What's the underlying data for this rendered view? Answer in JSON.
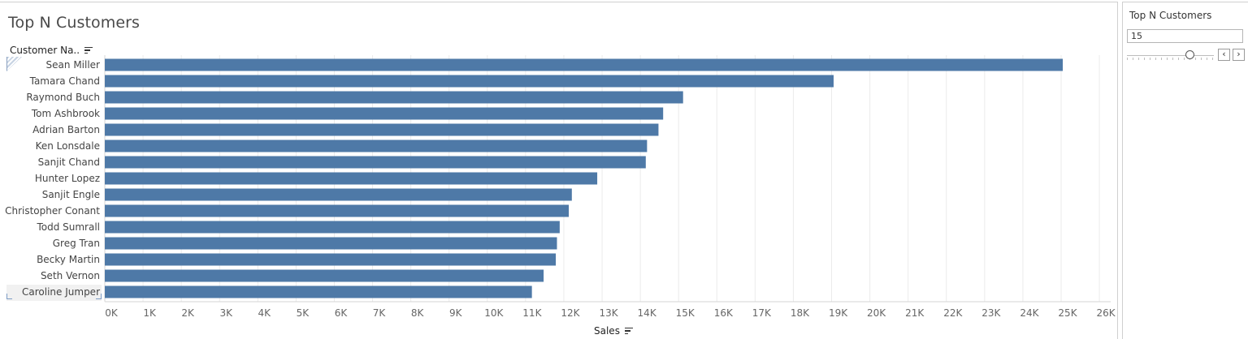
{
  "sheet": {
    "title": "Top N Customers",
    "row_header": "Customer Na..",
    "axis_title": "Sales"
  },
  "parameter": {
    "title": "Top N Customers",
    "value": "15",
    "slider_position": 0.72,
    "prev_label": "‹",
    "next_label": "›"
  },
  "colors": {
    "bar": "#4e79a7",
    "grid": "#ebebeb"
  },
  "chart_data": {
    "type": "bar",
    "orientation": "horizontal",
    "categories": [
      "Sean Miller",
      "Tamara Chand",
      "Raymond Buch",
      "Tom Ashbrook",
      "Adrian Barton",
      "Ken Lonsdale",
      "Sanjit Chand",
      "Hunter Lopez",
      "Sanjit Engle",
      "Christopher Conant",
      "Todd Sumrall",
      "Greg Tran",
      "Becky Martin",
      "Seth Vernon",
      "Caroline Jumper"
    ],
    "values": [
      25043,
      19052,
      15117,
      14596,
      14474,
      14175,
      14142,
      12873,
      12209,
      12129,
      11892,
      11820,
      11790,
      11471,
      11165
    ],
    "xlabel": "Sales",
    "ylabel": "Customer Na..",
    "xlim": [
      0,
      26000
    ],
    "x_ticks": [
      "0K",
      "1K",
      "2K",
      "3K",
      "4K",
      "5K",
      "6K",
      "7K",
      "8K",
      "9K",
      "10K",
      "11K",
      "12K",
      "13K",
      "14K",
      "15K",
      "16K",
      "17K",
      "18K",
      "19K",
      "20K",
      "21K",
      "22K",
      "23K",
      "24K",
      "25K",
      "26K"
    ],
    "grid": true,
    "sorted": "descending"
  }
}
